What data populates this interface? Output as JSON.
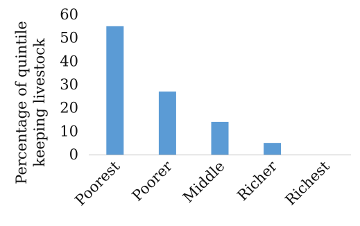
{
  "chart_data": {
    "type": "bar",
    "categories": [
      "Poorest",
      "Poorer",
      "Middle",
      "Richer",
      "Richest"
    ],
    "values": [
      55,
      27,
      14,
      5,
      0
    ],
    "ylabel_lines": [
      "Percentage of quintile",
      "keeping livestock"
    ],
    "yticks": [
      "0",
      "10",
      "20",
      "30",
      "40",
      "50",
      "60"
    ],
    "ylim": [
      0,
      60
    ],
    "grid": false,
    "legend": false,
    "bar_color": "#5b9bd5",
    "axis_color": "#bfbfbf"
  }
}
